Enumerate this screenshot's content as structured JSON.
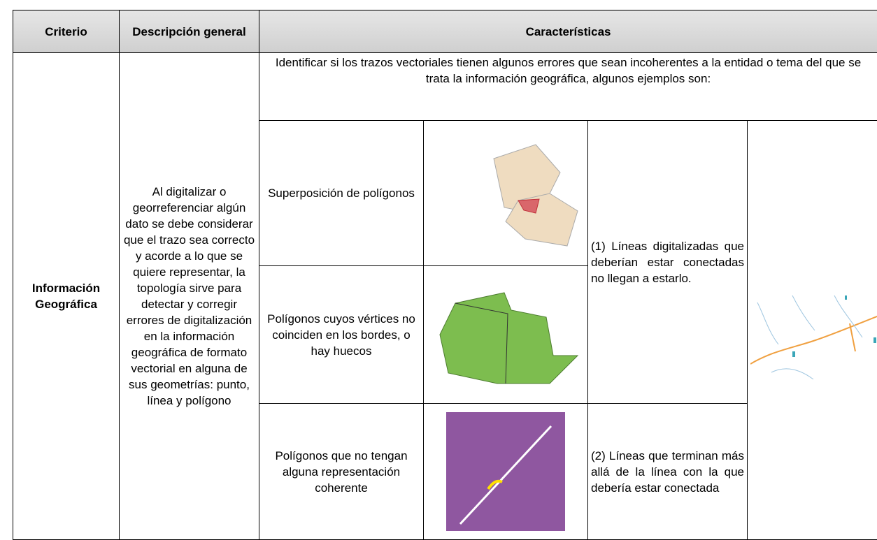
{
  "table": {
    "header": [
      "Criterio",
      "Descripción general",
      "Características"
    ],
    "criterion": "Información Geográfica",
    "description": "Al digitalizar o georreferenciar algún dato se debe considerar que el trazo sea correcto y acorde a lo que se quiere representar, la topología sirve para detectar y corregir errores de digitalización en la información geográfica de formato vectorial en alguna de sus geometrías: punto, línea y polígono",
    "intro": "Identificar si los trazos vectoriales tienen algunos errores que sean incoherentes a la entidad o tema del que se trata la información geográfica, algunos ejemplos son:",
    "examples": [
      "Superposición de polígonos",
      "Polígonos cuyos vértices no coinciden en los bordes, o hay huecos",
      "Polígonos que no tengan alguna representación coherente"
    ],
    "notes": [
      "(1) Líneas digitalizadas que deberían estar conectadas no llegan a estarlo.",
      "(2) Líneas que terminan más allá de la línea con la que debería estar conectada"
    ]
  }
}
